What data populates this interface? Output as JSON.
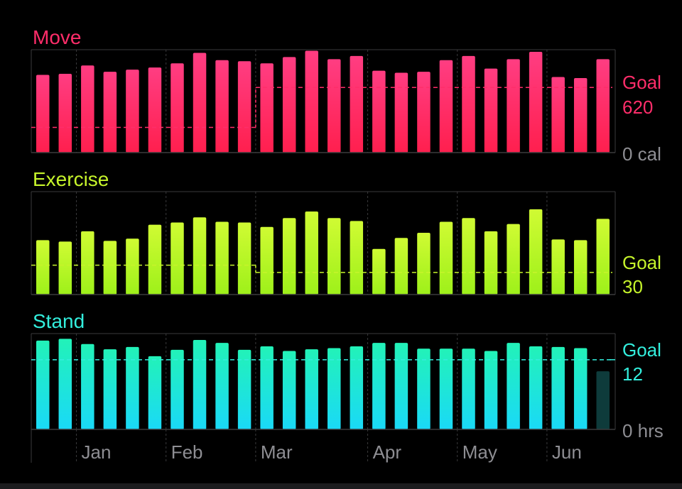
{
  "chart_data": [
    {
      "type": "bar",
      "title": "Move",
      "color": "#ff2d6a",
      "color_top": "#ff3d82",
      "color_bottom": "#ff1f4e",
      "ylim": [
        0,
        980
      ],
      "values": [
        740,
        750,
        830,
        770,
        790,
        810,
        850,
        950,
        880,
        870,
        850,
        910,
        970,
        890,
        920,
        780,
        760,
        770,
        880,
        920,
        800,
        890,
        960,
        720,
        710,
        890
      ],
      "goal_segments": [
        {
          "from_bar": 0,
          "to_bar": 9,
          "value": 240
        },
        {
          "from_bar": 10,
          "to_bar": 25,
          "value": 620
        }
      ],
      "goal_label": "Goal",
      "goal_value": "620",
      "baseline_label": "0 cal"
    },
    {
      "type": "bar",
      "title": "Exercise",
      "color": "#c6f42b",
      "color_top": "#d0fb33",
      "color_bottom": "#9ef01a",
      "ylim": [
        0,
        140
      ],
      "values": [
        74,
        72,
        86,
        73,
        76,
        95,
        98,
        105,
        99,
        98,
        92,
        104,
        113,
        104,
        100,
        62,
        77,
        84,
        99,
        104,
        86,
        96,
        116,
        75,
        74,
        103
      ],
      "goal_segments": [
        {
          "from_bar": 0,
          "to_bar": 9,
          "value": 40
        },
        {
          "from_bar": 10,
          "to_bar": 25,
          "value": 30
        }
      ],
      "goal_label": "Goal",
      "goal_value": "30",
      "baseline_label": ""
    },
    {
      "type": "bar",
      "title": "Stand",
      "color": "#33eedd",
      "color_top": "#22f2b8",
      "color_bottom": "#1ad9f7",
      "ylim": [
        0,
        16.5
      ],
      "values": [
        15.3,
        15.6,
        14.7,
        13.8,
        14.2,
        12.6,
        13.7,
        15.4,
        14.9,
        13.7,
        14.3,
        13.5,
        13.8,
        14.0,
        14.3,
        14.9,
        14.9,
        13.9,
        13.9,
        13.9,
        13.5,
        14.9,
        14.3,
        14.2,
        14.0,
        10.0
      ],
      "last_bar_dim": true,
      "goal_segments": [
        {
          "from_bar": 0,
          "to_bar": 25,
          "value": 12
        }
      ],
      "goal_label": "Goal",
      "goal_value": "12",
      "baseline_label": "0 hrs"
    }
  ],
  "x_labels": [
    {
      "label": "Jan",
      "after_bar": 1
    },
    {
      "label": "Feb",
      "after_bar": 5
    },
    {
      "label": "Mar",
      "after_bar": 9
    },
    {
      "label": "Apr",
      "after_bar": 14
    },
    {
      "label": "May",
      "after_bar": 18
    },
    {
      "label": "Jun",
      "after_bar": 22
    }
  ],
  "colors": {
    "background": "#000000",
    "gridline": "#3a3a3c",
    "axis_text": "#8e8e93"
  }
}
